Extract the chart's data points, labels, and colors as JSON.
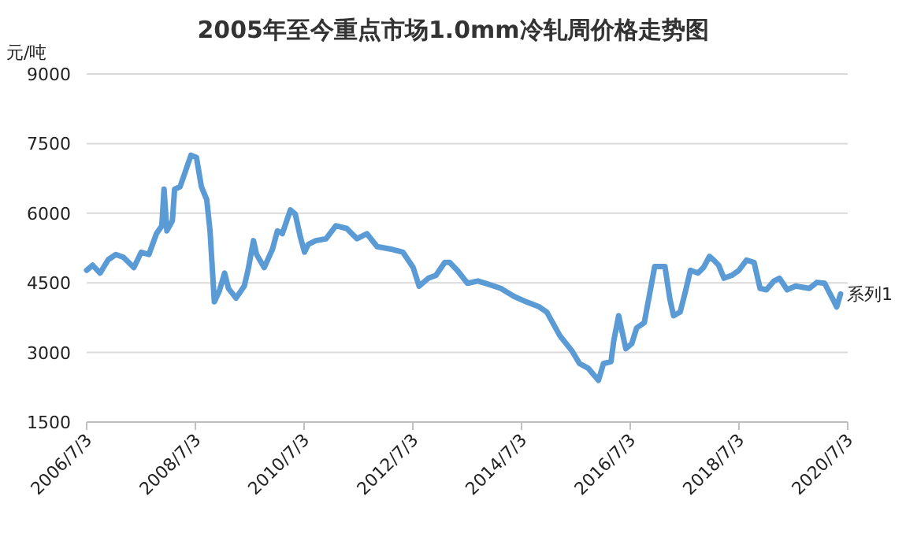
{
  "chart_data": {
    "type": "line",
    "title": "2005年至今重点市场1.0mm冷轧周价格走势图",
    "ylabel": "元/吨",
    "grid": "y",
    "marker": "none",
    "line_style": "solid",
    "xlim": [
      "2006-07-03",
      "2020-07-03"
    ],
    "xticks": [
      {
        "value": "2006-07-03",
        "label": "2006/7/3"
      },
      {
        "value": "2008-07-03",
        "label": "2008/7/3"
      },
      {
        "value": "2010-07-03",
        "label": "2010/7/3"
      },
      {
        "value": "2012-07-03",
        "label": "2012/7/3"
      },
      {
        "value": "2014-07-03",
        "label": "2014/7/3"
      },
      {
        "value": "2016-07-03",
        "label": "2016/7/3"
      },
      {
        "value": "2018-07-03",
        "label": "2018/7/3"
      },
      {
        "value": "2020-07-03",
        "label": "2020/7/3"
      }
    ],
    "ylim": [
      1500,
      9000
    ],
    "yticks": [
      1500,
      3000,
      4500,
      6000,
      7500,
      9000
    ],
    "x": [
      "2006-07-03",
      "2006-08-12",
      "2006-10-01",
      "2006-11-25",
      "2007-01-15",
      "2007-03-07",
      "2007-05-16",
      "2007-07-05",
      "2007-08-25",
      "2007-10-15",
      "2007-11-20",
      "2007-12-05",
      "2007-12-24",
      "2008-01-30",
      "2008-02-14",
      "2008-03-22",
      "2008-06-03",
      "2008-07-10",
      "2008-08-12",
      "2008-09-17",
      "2008-10-09",
      "2008-11-07",
      "2008-12-10",
      "2009-01-15",
      "2009-02-10",
      "2009-04-02",
      "2009-05-27",
      "2009-06-21",
      "2009-07-28",
      "2009-08-18",
      "2009-10-08",
      "2009-12-02",
      "2010-01-05",
      "2010-02-07",
      "2010-04-02",
      "2010-05-05",
      "2010-06-07",
      "2010-07-06",
      "2010-07-31",
      "2010-09-20",
      "2010-11-28",
      "2011-02-02",
      "2011-04-16",
      "2011-06-24",
      "2011-08-29",
      "2011-11-06",
      "2012-02-17",
      "2012-04-27",
      "2012-07-05",
      "2012-08-14",
      "2012-10-15",
      "2012-12-05",
      "2013-02-02",
      "2013-03-07",
      "2013-04-27",
      "2013-07-05",
      "2013-09-13",
      "2013-11-21",
      "2014-02-14",
      "2014-05-12",
      "2014-08-04",
      "2014-10-31",
      "2014-12-20",
      "2015-03-18",
      "2015-06-10",
      "2015-07-28",
      "2015-09-24",
      "2015-12-02",
      "2016-01-05",
      "2016-02-24",
      "2016-03-14",
      "2016-04-16",
      "2016-06-03",
      "2016-07-13",
      "2016-08-15",
      "2016-10-05",
      "2016-11-10",
      "2016-12-14",
      "2017-02-21",
      "2017-03-26",
      "2017-04-20",
      "2017-06-03",
      "2017-07-09",
      "2017-08-11",
      "2017-10-01",
      "2017-11-07",
      "2017-12-17",
      "2018-01-15",
      "2018-02-17",
      "2018-03-25",
      "2018-05-15",
      "2018-07-03",
      "2018-08-23",
      "2018-10-13",
      "2018-11-22",
      "2019-01-04",
      "2019-02-24",
      "2019-04-02",
      "2019-05-23",
      "2019-07-20",
      "2019-10-19",
      "2019-12-09",
      "2020-01-30",
      "2020-03-25",
      "2020-04-20",
      "2020-05-16"
    ],
    "series": [
      {
        "name": "系列1",
        "color": "#5b9bd5",
        "values": [
          4770,
          4880,
          4710,
          5000,
          5110,
          5050,
          4830,
          5160,
          5110,
          5560,
          5730,
          6520,
          5620,
          5840,
          6520,
          6570,
          7250,
          7200,
          6570,
          6290,
          5620,
          4090,
          4320,
          4710,
          4380,
          4170,
          4430,
          4770,
          5410,
          5110,
          4830,
          5220,
          5620,
          5560,
          6070,
          5980,
          5500,
          5160,
          5330,
          5410,
          5450,
          5730,
          5670,
          5450,
          5560,
          5280,
          5220,
          5160,
          4830,
          4430,
          4600,
          4660,
          4940,
          4940,
          4770,
          4490,
          4540,
          4470,
          4380,
          4210,
          4090,
          3980,
          3870,
          3360,
          3020,
          2760,
          2660,
          2400,
          2760,
          2800,
          3250,
          3790,
          3080,
          3190,
          3530,
          3640,
          4260,
          4850,
          4850,
          4150,
          3790,
          3870,
          4320,
          4770,
          4710,
          4830,
          5070,
          4990,
          4880,
          4600,
          4660,
          4770,
          4990,
          4940,
          4380,
          4350,
          4540,
          4600,
          4350,
          4430,
          4380,
          4510,
          4490,
          4150,
          3980,
          4260
        ]
      }
    ]
  }
}
